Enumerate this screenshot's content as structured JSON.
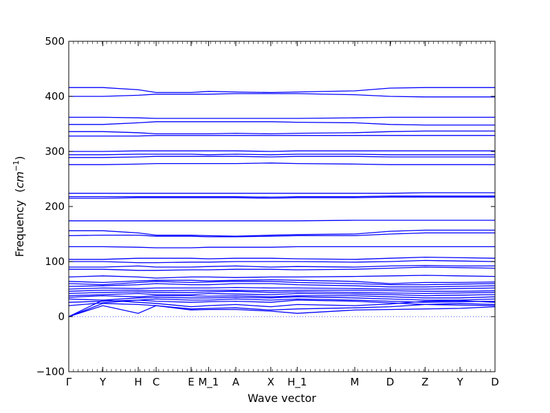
{
  "chart_data": {
    "type": "line",
    "xlabel": "Wave vector",
    "ylabel": "Frequency",
    "ylabel_unit_base": "cm",
    "ylabel_unit_exp": "−1",
    "ylim": [
      -100,
      500
    ],
    "yticks": [
      -100,
      0,
      100,
      200,
      300,
      400,
      500
    ],
    "xticks": [
      {
        "label": "Γ",
        "x": 0
      },
      {
        "label": "Y",
        "x": 0.08
      },
      {
        "label": "H",
        "x": 0.163
      },
      {
        "label": "C",
        "x": 0.205
      },
      {
        "label": "E",
        "x": 0.287
      },
      {
        "label": "M_1",
        "x": 0.328
      },
      {
        "label": "A",
        "x": 0.392
      },
      {
        "label": "X",
        "x": 0.474
      },
      {
        "label": "H_1",
        "x": 0.536
      },
      {
        "label": "M",
        "x": 0.671
      },
      {
        "label": "D",
        "x": 0.754
      },
      {
        "label": "Z",
        "x": 0.836
      },
      {
        "label": "Y",
        "x": 0.918
      },
      {
        "label": "D",
        "x": 1
      }
    ],
    "line_color": "#0000ff",
    "zero_line": {
      "y": 0,
      "style": "dotted",
      "color": "#0000ff"
    },
    "grid": false,
    "legend": "none",
    "band_x": [
      0,
      0.08,
      0.163,
      0.205,
      0.287,
      0.328,
      0.392,
      0.474,
      0.536,
      0.671,
      0.754,
      0.836,
      0.918,
      1
    ],
    "bands": [
      [
        0,
        20,
        6,
        20,
        12,
        13,
        13,
        10,
        6,
        12,
        13,
        14,
        15,
        18
      ],
      [
        0,
        24,
        22,
        20,
        14,
        15,
        16,
        12,
        14,
        16,
        18,
        22,
        24,
        22
      ],
      [
        0,
        30,
        26,
        24,
        18,
        20,
        22,
        18,
        22,
        20,
        23,
        28,
        29,
        26
      ],
      [
        20,
        25,
        30,
        28,
        26,
        27,
        28,
        26,
        30,
        28,
        25,
        22,
        21,
        20
      ],
      [
        26,
        28,
        30,
        32,
        30,
        30,
        32,
        30,
        32,
        30,
        28,
        26,
        27,
        28
      ],
      [
        32,
        30,
        34,
        35,
        34,
        34,
        35,
        34,
        36,
        34,
        32,
        30,
        30,
        32
      ],
      [
        35,
        38,
        36,
        38,
        38,
        37,
        38,
        36,
        38,
        38,
        36,
        34,
        34,
        36
      ],
      [
        38,
        40,
        42,
        40,
        40,
        42,
        41,
        40,
        42,
        41,
        40,
        38,
        39,
        40
      ],
      [
        42,
        44,
        45,
        44,
        44,
        45,
        46,
        44,
        45,
        44,
        43,
        42,
        43,
        44
      ],
      [
        46,
        48,
        48,
        47,
        48,
        48,
        48,
        47,
        48,
        48,
        47,
        46,
        46,
        47
      ],
      [
        50,
        52,
        51,
        52,
        52,
        52,
        53,
        52,
        52,
        51,
        50,
        50,
        51,
        52
      ],
      [
        55,
        56,
        58,
        60,
        58,
        58,
        60,
        60,
        58,
        56,
        54,
        54,
        55,
        56
      ],
      [
        60,
        58,
        62,
        64,
        62,
        63,
        64,
        64,
        62,
        60,
        58,
        58,
        59,
        60
      ],
      [
        64,
        62,
        65,
        66,
        66,
        65,
        66,
        67,
        66,
        64,
        60,
        62,
        62,
        63
      ],
      [
        72,
        74,
        72,
        70,
        72,
        72,
        71,
        72,
        72,
        73,
        74,
        75,
        74,
        73
      ],
      [
        86,
        86,
        84,
        84,
        85,
        85,
        86,
        86,
        85,
        86,
        88,
        90,
        89,
        88
      ],
      [
        90,
        90,
        92,
        90,
        90,
        91,
        92,
        90,
        91,
        90,
        92,
        93,
        92,
        92
      ],
      [
        100,
        100,
        98,
        98,
        99,
        99,
        100,
        100,
        100,
        99,
        100,
        102,
        101,
        100
      ],
      [
        104,
        104,
        106,
        106,
        106,
        105,
        106,
        106,
        105,
        104,
        106,
        108,
        107,
        106
      ],
      [
        127,
        127,
        126,
        125,
        125,
        126,
        126,
        126,
        127,
        127,
        127,
        127,
        127,
        127
      ],
      [
        147,
        148,
        148,
        146,
        146,
        145,
        145,
        146,
        147,
        147,
        150,
        152,
        152,
        152
      ],
      [
        156,
        156,
        152,
        148,
        148,
        147,
        146,
        148,
        149,
        150,
        155,
        157,
        157,
        157
      ],
      [
        174,
        174,
        174,
        174,
        174,
        174,
        174,
        174,
        174,
        175,
        175,
        175,
        175,
        175
      ],
      [
        215,
        215,
        216,
        216,
        216,
        216,
        216,
        215,
        216,
        216,
        217,
        217,
        217,
        217
      ],
      [
        218,
        218,
        218,
        218,
        218,
        218,
        218,
        217,
        218,
        218,
        219,
        219,
        219,
        219
      ],
      [
        224,
        224,
        224,
        224,
        224,
        224,
        224,
        224,
        224,
        224,
        224,
        225,
        225,
        225
      ],
      [
        276,
        276,
        277,
        278,
        278,
        278,
        278,
        279,
        278,
        277,
        276,
        276,
        276,
        276
      ],
      [
        289,
        289,
        290,
        291,
        291,
        291,
        291,
        290,
        291,
        291,
        290,
        290,
        290,
        290
      ],
      [
        294,
        294,
        295,
        295,
        295,
        294,
        295,
        294,
        295,
        295,
        294,
        294,
        294,
        294
      ],
      [
        300,
        300,
        301,
        301,
        301,
        301,
        301,
        300,
        301,
        301,
        301,
        301,
        301,
        301
      ],
      [
        328,
        328,
        328,
        329,
        329,
        329,
        329,
        329,
        329,
        329,
        329,
        329,
        329,
        329
      ],
      [
        336,
        336,
        334,
        332,
        332,
        332,
        333,
        332,
        333,
        334,
        336,
        337,
        337,
        337
      ],
      [
        349,
        349,
        352,
        354,
        354,
        354,
        354,
        354,
        353,
        352,
        349,
        348,
        348,
        348
      ],
      [
        362,
        362,
        361,
        360,
        360,
        360,
        360,
        360,
        360,
        361,
        362,
        362,
        362,
        362
      ],
      [
        400,
        400,
        402,
        404,
        404,
        404,
        405,
        405,
        405,
        403,
        400,
        399,
        399,
        399
      ],
      [
        416,
        416,
        412,
        407,
        407,
        409,
        408,
        407,
        408,
        410,
        415,
        416,
        416,
        416
      ]
    ]
  }
}
